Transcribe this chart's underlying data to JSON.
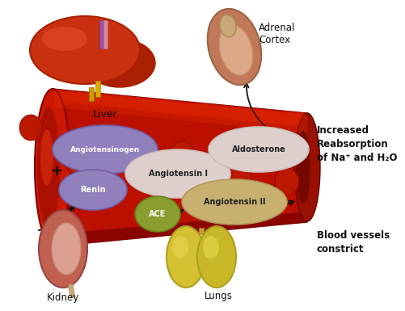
{
  "background_color": "#ffffff",
  "labels": {
    "liver": "Liver",
    "adrenal_cortex": "Adrenal\nCortex",
    "kidney": "Kidney",
    "lungs": "Lungs",
    "angiotensinogen": "Angiotensinogen",
    "renin": "Renin",
    "plus": "+",
    "angiotensin_I": "Angiotensin I",
    "angiotensin_II": "Angiotensin II",
    "ace": "ACE",
    "aldosterone": "Aldosterone",
    "increased": "Increased\nReabsorption\nof Na⁺ and H₂O",
    "blood_vessels": "Blood vessels\nconstrict"
  },
  "colors": {
    "blood_vessel": "#cc1100",
    "angiotensinogen_ellipse": "#9080bb",
    "renin_ellipse": "#9080bb",
    "angiotensin_I_ellipse": "#ddd0cc",
    "angiotensin_II_ellipse": "#c8b070",
    "ace_ellipse": "#8a9e30",
    "aldosterone_ellipse": "#ddd0cc",
    "liver_main": "#c83010",
    "liver_dark": "#aa2000",
    "liver_highlight": "#e85030",
    "kidney_main": "#c06050",
    "kidney_inner": "#dba090",
    "adrenal_main": "#c07050",
    "adrenal_inner": "#dba888",
    "lung_main": "#d4c030",
    "lung_highlight": "#e8d850",
    "rbc_color": "#bb1800",
    "text_dark": "#111111",
    "text_white": "#ffffff",
    "arrow_color": "#111111"
  }
}
